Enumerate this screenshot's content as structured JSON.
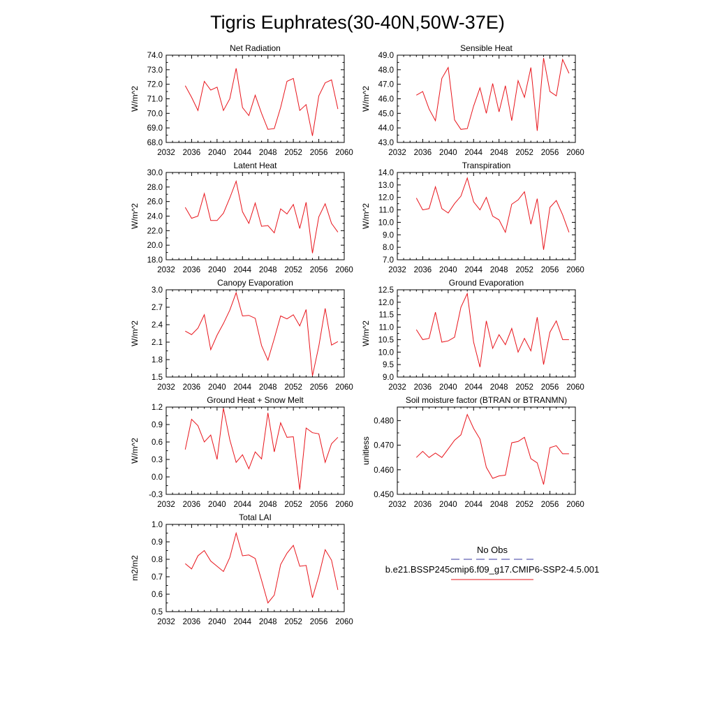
{
  "figure_title": "Tigris Euphrates(30-40N,50W-37E)",
  "colors": {
    "model_line": "#e8141b",
    "obs_line": "#3a3aa0",
    "frame": "#000000"
  },
  "chart_data": [
    {
      "type": "line",
      "title": "Net Radiation",
      "ylabel": "W/m^2",
      "xlim": [
        2032,
        2060
      ],
      "ylim": [
        68.0,
        74.0
      ],
      "xticks": [
        2032,
        2036,
        2040,
        2044,
        2048,
        2052,
        2056,
        2060
      ],
      "yticks": [
        "68.0",
        "69.0",
        "70.0",
        "71.0",
        "72.0",
        "73.0",
        "74.0"
      ],
      "series": [
        {
          "x": [
            2035,
            2036,
            2037,
            2038,
            2039,
            2040,
            2041,
            2042,
            2043,
            2044,
            2045,
            2046,
            2047,
            2048,
            2049,
            2050,
            2051,
            2052,
            2053,
            2054,
            2055,
            2056,
            2057,
            2058,
            2059
          ],
          "values": [
            71.9,
            71.1,
            70.2,
            72.2,
            71.6,
            71.8,
            70.2,
            71.0,
            73.1,
            70.4,
            69.85,
            71.25,
            70.0,
            68.9,
            68.95,
            70.4,
            72.2,
            72.4,
            70.2,
            70.6,
            68.45,
            71.2,
            72.1,
            72.3,
            70.3
          ]
        }
      ]
    },
    {
      "type": "line",
      "title": "Sensible Heat",
      "ylabel": "W/m^2",
      "xlim": [
        2032,
        2060
      ],
      "ylim": [
        43.0,
        49.0
      ],
      "xticks": [
        2032,
        2036,
        2040,
        2044,
        2048,
        2052,
        2056,
        2060
      ],
      "yticks": [
        "43.0",
        "44.0",
        "45.0",
        "46.0",
        "47.0",
        "48.0",
        "49.0"
      ],
      "series": [
        {
          "x": [
            2035,
            2036,
            2037,
            2038,
            2039,
            2040,
            2041,
            2042,
            2043,
            2044,
            2045,
            2046,
            2047,
            2048,
            2049,
            2050,
            2051,
            2052,
            2053,
            2054,
            2055,
            2056,
            2057,
            2058,
            2059
          ],
          "values": [
            46.25,
            46.5,
            45.3,
            44.5,
            47.4,
            48.15,
            44.55,
            43.9,
            43.95,
            45.5,
            46.75,
            45.0,
            47.05,
            45.1,
            46.9,
            44.5,
            47.25,
            46.1,
            48.15,
            43.8,
            48.8,
            46.5,
            46.2,
            48.7,
            47.75
          ]
        }
      ]
    },
    {
      "type": "line",
      "title": "Latent Heat",
      "ylabel": "W/m^2",
      "xlim": [
        2032,
        2060
      ],
      "ylim": [
        18.0,
        30.0
      ],
      "xticks": [
        2032,
        2036,
        2040,
        2044,
        2048,
        2052,
        2056,
        2060
      ],
      "yticks": [
        "18.0",
        "20.0",
        "22.0",
        "24.0",
        "26.0",
        "28.0",
        "30.0"
      ],
      "series": [
        {
          "x": [
            2035,
            2036,
            2037,
            2038,
            2039,
            2040,
            2041,
            2042,
            2043,
            2044,
            2045,
            2046,
            2047,
            2048,
            2049,
            2050,
            2051,
            2052,
            2053,
            2054,
            2055,
            2056,
            2057,
            2058,
            2059
          ],
          "values": [
            25.2,
            23.7,
            24.0,
            27.1,
            23.4,
            23.4,
            24.4,
            26.5,
            28.8,
            24.6,
            23.0,
            25.8,
            22.6,
            22.7,
            21.7,
            25.0,
            24.3,
            25.6,
            22.3,
            25.9,
            18.9,
            23.9,
            25.7,
            23.0,
            21.8
          ]
        }
      ]
    },
    {
      "type": "line",
      "title": "Transpiration",
      "ylabel": "W/m^2",
      "xlim": [
        2032,
        2060
      ],
      "ylim": [
        7.0,
        14.0
      ],
      "xticks": [
        2032,
        2036,
        2040,
        2044,
        2048,
        2052,
        2056,
        2060
      ],
      "yticks": [
        "7.0",
        "8.0",
        "9.0",
        "10.0",
        "11.0",
        "12.0",
        "13.0",
        "14.0"
      ],
      "series": [
        {
          "x": [
            2035,
            2036,
            2037,
            2038,
            2039,
            2040,
            2041,
            2042,
            2043,
            2044,
            2045,
            2046,
            2047,
            2048,
            2049,
            2050,
            2051,
            2052,
            2053,
            2054,
            2055,
            2056,
            2057,
            2058,
            2059
          ],
          "values": [
            11.95,
            11.0,
            11.1,
            12.85,
            11.1,
            10.75,
            11.5,
            12.1,
            13.55,
            11.65,
            11.0,
            12.0,
            10.5,
            10.2,
            9.2,
            11.45,
            11.8,
            12.45,
            9.85,
            11.9,
            7.8,
            11.2,
            11.75,
            10.6,
            9.2
          ]
        }
      ]
    },
    {
      "type": "line",
      "title": "Canopy Evaporation",
      "ylabel": "W/m^2",
      "xlim": [
        2032,
        2060
      ],
      "ylim": [
        1.5,
        3.0
      ],
      "xticks": [
        2032,
        2036,
        2040,
        2044,
        2048,
        2052,
        2056,
        2060
      ],
      "yticks": [
        "1.5",
        "1.8",
        "2.1",
        "2.4",
        "2.7",
        "3.0"
      ],
      "series": [
        {
          "x": [
            2035,
            2036,
            2037,
            2038,
            2039,
            2040,
            2041,
            2042,
            2043,
            2044,
            2045,
            2046,
            2047,
            2048,
            2049,
            2050,
            2051,
            2052,
            2053,
            2054,
            2055,
            2056,
            2057,
            2058,
            2059
          ],
          "values": [
            2.29,
            2.23,
            2.34,
            2.57,
            1.97,
            2.22,
            2.42,
            2.65,
            2.95,
            2.55,
            2.56,
            2.51,
            2.04,
            1.79,
            2.16,
            2.55,
            2.5,
            2.57,
            2.38,
            2.66,
            1.52,
            2.03,
            2.68,
            2.05,
            2.11
          ]
        }
      ]
    },
    {
      "type": "line",
      "title": "Ground Evaporation",
      "ylabel": "W/m^2",
      "xlim": [
        2032,
        2060
      ],
      "ylim": [
        9.0,
        12.5
      ],
      "xticks": [
        2032,
        2036,
        2040,
        2044,
        2048,
        2052,
        2056,
        2060
      ],
      "yticks": [
        "9.0",
        "9.5",
        "10.0",
        "10.5",
        "11.0",
        "11.5",
        "12.0",
        "12.5"
      ],
      "series": [
        {
          "x": [
            2035,
            2036,
            2037,
            2038,
            2039,
            2040,
            2041,
            2042,
            2043,
            2044,
            2045,
            2046,
            2047,
            2048,
            2049,
            2050,
            2051,
            2052,
            2053,
            2054,
            2055,
            2056,
            2057,
            2058,
            2059
          ],
          "values": [
            10.9,
            10.5,
            10.55,
            11.6,
            10.4,
            10.45,
            10.6,
            11.8,
            12.35,
            10.4,
            9.4,
            11.25,
            10.15,
            10.7,
            10.3,
            10.95,
            10.0,
            10.55,
            10.05,
            11.4,
            9.5,
            10.8,
            11.25,
            10.5,
            10.5
          ]
        }
      ]
    },
    {
      "type": "line",
      "title": "Ground Heat + Snow Melt",
      "ylabel": "W/m^2",
      "xlim": [
        2032,
        2060
      ],
      "ylim": [
        -0.3,
        1.2
      ],
      "xticks": [
        2032,
        2036,
        2040,
        2044,
        2048,
        2052,
        2056,
        2060
      ],
      "yticks": [
        "-0.3",
        "0.0",
        "0.3",
        "0.6",
        "0.9",
        "1.2"
      ],
      "series": [
        {
          "x": [
            2035,
            2036,
            2037,
            2038,
            2039,
            2040,
            2041,
            2042,
            2043,
            2044,
            2045,
            2046,
            2047,
            2048,
            2049,
            2050,
            2051,
            2052,
            2053,
            2054,
            2055,
            2056,
            2057,
            2058,
            2059
          ],
          "values": [
            0.47,
            0.99,
            0.88,
            0.6,
            0.72,
            0.3,
            1.18,
            0.64,
            0.25,
            0.38,
            0.14,
            0.43,
            0.31,
            1.1,
            0.43,
            0.93,
            0.68,
            0.69,
            -0.22,
            0.84,
            0.76,
            0.74,
            0.25,
            0.57,
            0.68
          ]
        }
      ]
    },
    {
      "type": "line",
      "title": "Soil moisture factor (BTRAN or BTRANMN)",
      "ylabel": "unitless",
      "xlim": [
        2032,
        2060
      ],
      "ylim": [
        0.45,
        0.4855
      ],
      "xticks": [
        2032,
        2036,
        2040,
        2044,
        2048,
        2052,
        2056,
        2060
      ],
      "yticks": [
        "0.450",
        "0.460",
        "0.470",
        "0.480"
      ],
      "series": [
        {
          "x": [
            2035,
            2036,
            2037,
            2038,
            2039,
            2040,
            2041,
            2042,
            2043,
            2044,
            2045,
            2046,
            2047,
            2048,
            2049,
            2050,
            2051,
            2052,
            2053,
            2054,
            2055,
            2056,
            2057,
            2058,
            2059
          ],
          "values": [
            0.465,
            0.4675,
            0.465,
            0.4668,
            0.465,
            0.4685,
            0.472,
            0.4742,
            0.4825,
            0.4768,
            0.4725,
            0.461,
            0.4565,
            0.4575,
            0.4578,
            0.471,
            0.4715,
            0.4732,
            0.4645,
            0.4628,
            0.454,
            0.469,
            0.4698,
            0.4665,
            0.4665
          ]
        }
      ]
    },
    {
      "type": "line",
      "title": "Total LAI",
      "ylabel": "m2/m2",
      "xlim": [
        2032,
        2060
      ],
      "ylim": [
        0.5,
        1.0
      ],
      "xticks": [
        2032,
        2036,
        2040,
        2044,
        2048,
        2052,
        2056,
        2060
      ],
      "yticks": [
        "0.5",
        "0.6",
        "0.7",
        "0.8",
        "0.9",
        "1.0"
      ],
      "series": [
        {
          "x": [
            2035,
            2036,
            2037,
            2038,
            2039,
            2040,
            2041,
            2042,
            2043,
            2044,
            2045,
            2046,
            2047,
            2048,
            2049,
            2050,
            2051,
            2052,
            2053,
            2054,
            2055,
            2056,
            2057,
            2058,
            2059
          ],
          "values": [
            0.775,
            0.745,
            0.82,
            0.85,
            0.79,
            0.76,
            0.73,
            0.81,
            0.95,
            0.82,
            0.825,
            0.805,
            0.68,
            0.55,
            0.595,
            0.77,
            0.835,
            0.88,
            0.76,
            0.765,
            0.58,
            0.705,
            0.855,
            0.795,
            0.625
          ]
        }
      ]
    }
  ],
  "legend": {
    "items": [
      {
        "label": "No Obs",
        "style": "dashed",
        "color": "#3a3aa0"
      },
      {
        "label": "b.e21.BSSP245cmip6.f09_g17.CMIP6-SSP2-4.5.001",
        "style": "solid",
        "color": "#e8141b"
      }
    ]
  }
}
